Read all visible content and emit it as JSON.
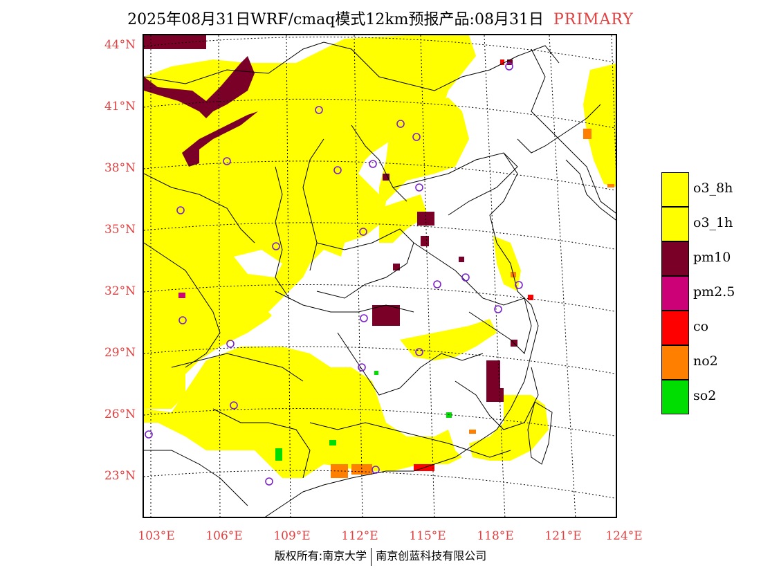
{
  "title": {
    "main": "2025年08月31日WRF/cmaq模式12km预报产品:08月31日",
    "tag": "PRIMARY"
  },
  "colors": {
    "o3": "#ffff00",
    "pm10": "#7a0028",
    "pm25": "#cc0077",
    "co": "#ff0000",
    "no2": "#ff7f00",
    "so2": "#00dd00",
    "label_red": "#e04040",
    "site_ring": "#7a20cc"
  },
  "axes": {
    "latitudes": [
      "44°N",
      "41°N",
      "38°N",
      "35°N",
      "32°N",
      "29°N",
      "26°N",
      "23°N"
    ],
    "longitudes": [
      "103°E",
      "106°E",
      "109°E",
      "112°E",
      "115°E",
      "118°E",
      "121°E",
      "124°E"
    ]
  },
  "legend": {
    "items": [
      {
        "label": "o3_8h",
        "color": "#ffff00"
      },
      {
        "label": "o3_1h",
        "color": "#ffff00"
      },
      {
        "label": "pm10",
        "color": "#7a0028"
      },
      {
        "label": "pm2.5",
        "color": "#cc0077"
      },
      {
        "label": "co",
        "color": "#ff0000"
      },
      {
        "label": "no2",
        "color": "#ff7f00"
      },
      {
        "label": "so2",
        "color": "#00dd00"
      }
    ]
  },
  "copyright": {
    "left": "版权所有:南京大学",
    "right": "南京创蓝科技有限公司"
  }
}
